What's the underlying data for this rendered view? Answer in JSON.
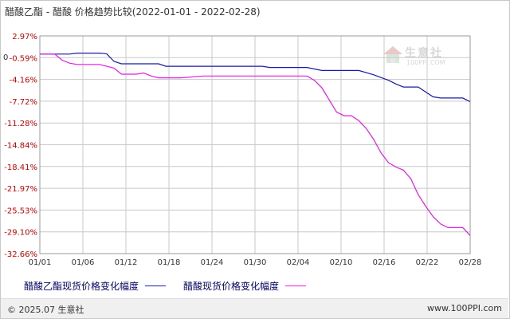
{
  "title": "醋酸乙酯 - 醋酸 价格趋势比较(2022-01-01 - 2022-02-28)",
  "footer": {
    "copyright": "© 2025.07 生意社",
    "url": "www.100PPI.com"
  },
  "watermark": {
    "brand": "生意社",
    "url": "100PPI.COM"
  },
  "colors": {
    "series1": "#1a1aa6",
    "series2": "#e619e6",
    "ytick": "#cc0000",
    "grid": "#c8c8c8"
  },
  "chart_data": {
    "type": "line",
    "title": "醋酸乙酯 - 醋酸 价格趋势比较(2022-01-01 - 2022-02-28)",
    "xlabel": "",
    "ylabel": "",
    "x_ticks": [
      "01/01",
      "01/06",
      "01/12",
      "01/18",
      "01/24",
      "01/30",
      "02/04",
      "02/10",
      "02/16",
      "02/22",
      "02/28"
    ],
    "y_ticks": [
      "2.97%",
      "-0.59%",
      "-4.16%",
      "-7.72%",
      "-11.28%",
      "-14.84%",
      "-18.41%",
      "-21.97%",
      "-25.53%",
      "-29.10%",
      "-32.66%"
    ],
    "y_zero_label": "0",
    "ylim": [
      -32.66,
      2.97
    ],
    "xlim": [
      "2022-01-01",
      "2022-02-28"
    ],
    "grid": true,
    "legend_position": "bottom-left",
    "series": [
      {
        "name": "醋酸乙酯现货价格变化幅度",
        "color": "#1a1aa6",
        "points": [
          [
            "2022-01-01",
            0
          ],
          [
            "2022-01-05",
            0
          ],
          [
            "2022-01-06",
            0.15
          ],
          [
            "2022-01-09",
            0.15
          ],
          [
            "2022-01-10",
            0.05
          ],
          [
            "2022-01-11",
            -1.2
          ],
          [
            "2022-01-12",
            -1.6
          ],
          [
            "2022-01-17",
            -1.6
          ],
          [
            "2022-01-18",
            -2.0
          ],
          [
            "2022-01-31",
            -2.0
          ],
          [
            "2022-02-01",
            -2.2
          ],
          [
            "2022-02-06",
            -2.2
          ],
          [
            "2022-02-08",
            -2.7
          ],
          [
            "2022-02-13",
            -2.7
          ],
          [
            "2022-02-15",
            -3.4
          ],
          [
            "2022-02-17",
            -4.3
          ],
          [
            "2022-02-18",
            -4.9
          ],
          [
            "2022-02-19",
            -5.4
          ],
          [
            "2022-02-21",
            -5.4
          ],
          [
            "2022-02-22",
            -6.2
          ],
          [
            "2022-02-23",
            -7.0
          ],
          [
            "2022-02-24",
            -7.2
          ],
          [
            "2022-02-27",
            -7.2
          ],
          [
            "2022-02-28",
            -7.8
          ]
        ]
      },
      {
        "name": "醋酸现货价格变化幅度",
        "color": "#e619e6",
        "points": [
          [
            "2022-01-01",
            0
          ],
          [
            "2022-01-03",
            0
          ],
          [
            "2022-01-04",
            -1.0
          ],
          [
            "2022-01-05",
            -1.5
          ],
          [
            "2022-01-06",
            -1.7
          ],
          [
            "2022-01-09",
            -1.7
          ],
          [
            "2022-01-10",
            -2.0
          ],
          [
            "2022-01-11",
            -2.3
          ],
          [
            "2022-01-12",
            -3.3
          ],
          [
            "2022-01-14",
            -3.3
          ],
          [
            "2022-01-15",
            -3.1
          ],
          [
            "2022-01-16",
            -3.6
          ],
          [
            "2022-01-17",
            -3.9
          ],
          [
            "2022-01-20",
            -3.9
          ],
          [
            "2022-01-23",
            -3.6
          ],
          [
            "2022-02-06",
            -3.6
          ],
          [
            "2022-02-07",
            -4.3
          ],
          [
            "2022-02-08",
            -5.5
          ],
          [
            "2022-02-09",
            -7.5
          ],
          [
            "2022-02-10",
            -9.5
          ],
          [
            "2022-02-11",
            -10.1
          ],
          [
            "2022-02-12",
            -10.1
          ],
          [
            "2022-02-13",
            -10.9
          ],
          [
            "2022-02-14",
            -12.2
          ],
          [
            "2022-02-15",
            -14.0
          ],
          [
            "2022-02-16",
            -16.2
          ],
          [
            "2022-02-17",
            -17.8
          ],
          [
            "2022-02-18",
            -18.5
          ],
          [
            "2022-02-19",
            -19.0
          ],
          [
            "2022-02-20",
            -20.4
          ],
          [
            "2022-02-21",
            -23.0
          ],
          [
            "2022-02-22",
            -24.9
          ],
          [
            "2022-02-23",
            -26.6
          ],
          [
            "2022-02-24",
            -27.8
          ],
          [
            "2022-02-25",
            -28.4
          ],
          [
            "2022-02-27",
            -28.4
          ],
          [
            "2022-02-28",
            -29.7
          ]
        ]
      }
    ]
  }
}
